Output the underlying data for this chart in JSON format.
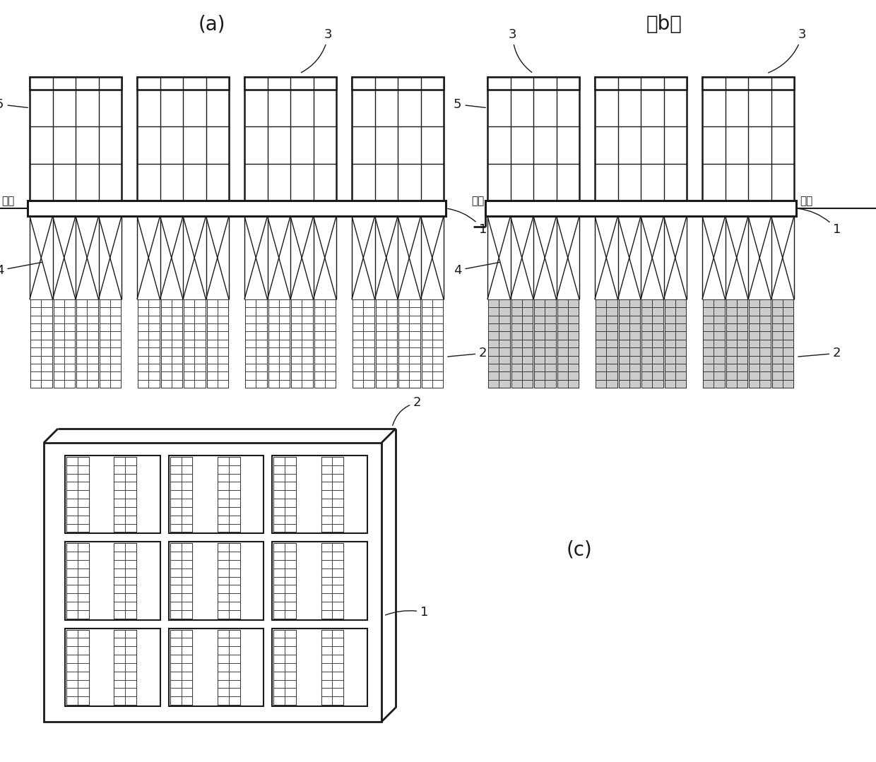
{
  "bg_color": "#ffffff",
  "line_color": "#1a1a1a",
  "label_a": "(a)",
  "label_b": "（b）",
  "label_c": "(c)",
  "water_label": "水面",
  "fig_width": 12.4,
  "fig_height": 10.79
}
